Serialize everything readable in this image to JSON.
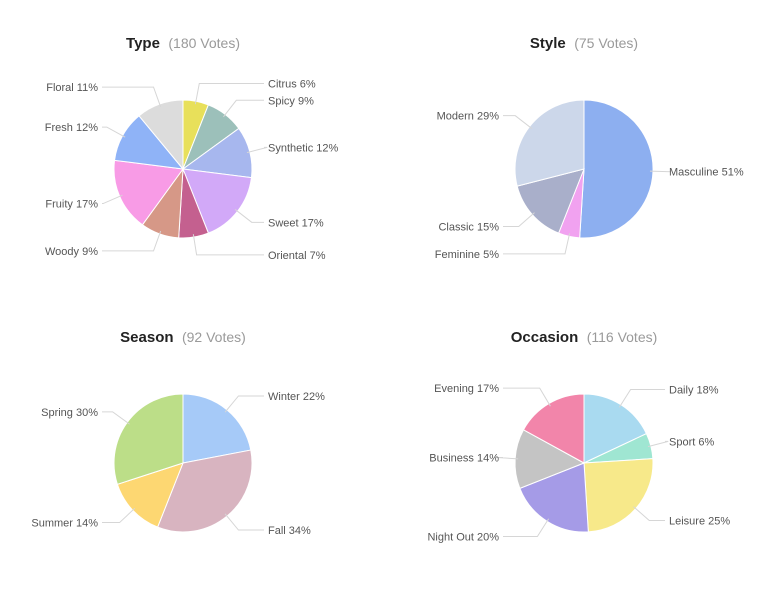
{
  "chart_data": [
    {
      "type": "pie",
      "title": "Type",
      "subtitle": "(180 Votes)",
      "slices": [
        {
          "label": "Citrus",
          "value": 6,
          "display": "6%",
          "color": "#e8e05a"
        },
        {
          "label": "Spicy",
          "value": 9,
          "display": "9%",
          "color": "#9cc0ba"
        },
        {
          "label": "Synthetic",
          "value": 12,
          "display": "12%",
          "color": "#a7b7ee"
        },
        {
          "label": "Sweet",
          "value": 17,
          "display": "17%",
          "color": "#d2a9f8"
        },
        {
          "label": "Oriental",
          "value": 7,
          "display": "7%",
          "color": "#c4608f"
        },
        {
          "label": "Woody",
          "value": 9,
          "display": "9%",
          "color": "#d69887"
        },
        {
          "label": "Fruity",
          "value": 17,
          "display": "17%",
          "color": "#f89be6"
        },
        {
          "label": "Fresh",
          "value": 12,
          "display": "12%",
          "color": "#8fb3f7"
        },
        {
          "label": "Floral",
          "value": 11,
          "display": "11%",
          "color": "#dcdcdc"
        }
      ]
    },
    {
      "type": "pie",
      "title": "Style",
      "subtitle": "(75 Votes)",
      "slices": [
        {
          "label": "Masculine",
          "value": 51,
          "display": "51%",
          "color": "#8daff0"
        },
        {
          "label": "Feminine",
          "value": 5,
          "display": "5%",
          "color": "#f1a2f0"
        },
        {
          "label": "Classic",
          "value": 15,
          "display": "15%",
          "color": "#a9afca"
        },
        {
          "label": "Modern",
          "value": 29,
          "display": "29%",
          "color": "#ccd7ea"
        }
      ]
    },
    {
      "type": "pie",
      "title": "Season",
      "subtitle": "(92 Votes)",
      "slices": [
        {
          "label": "Winter",
          "value": 22,
          "display": "22%",
          "color": "#a6caf8"
        },
        {
          "label": "Fall",
          "value": 34,
          "display": "34%",
          "color": "#d8b4c0"
        },
        {
          "label": "Summer",
          "value": 14,
          "display": "14%",
          "color": "#fdd772"
        },
        {
          "label": "Spring",
          "value": 30,
          "display": "30%",
          "color": "#bcde88"
        }
      ]
    },
    {
      "type": "pie",
      "title": "Occasion",
      "subtitle": "(116 Votes)",
      "slices": [
        {
          "label": "Daily",
          "value": 18,
          "display": "18%",
          "color": "#a9daf0"
        },
        {
          "label": "Sport",
          "value": 6,
          "display": "6%",
          "color": "#9fe6d2"
        },
        {
          "label": "Leisure",
          "value": 25,
          "display": "25%",
          "color": "#f7e98a"
        },
        {
          "label": "Night Out",
          "value": 20,
          "display": "20%",
          "color": "#a59be7"
        },
        {
          "label": "Business",
          "value": 14,
          "display": "14%",
          "color": "#c4c4c4"
        },
        {
          "label": "Evening",
          "value": 17,
          "display": "17%",
          "color": "#f285aa"
        }
      ]
    }
  ]
}
